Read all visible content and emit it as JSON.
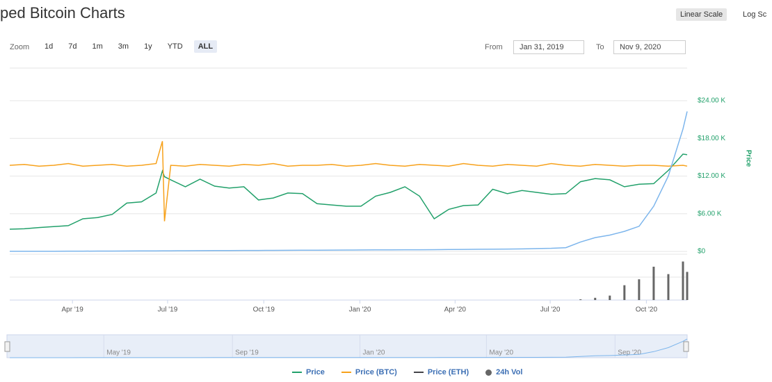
{
  "header": {
    "title": "ped Bitcoin Charts",
    "scale_buttons": [
      "Linear Scale",
      "Log Sc"
    ],
    "zoom_label": "Zoom",
    "zoom_buttons": [
      "1d",
      "7d",
      "1m",
      "3m",
      "1y",
      "YTD",
      "ALL"
    ],
    "from_label": "From",
    "from": "Jan 31, 2019",
    "to_label": "To",
    "to": "Nov 9, 2020"
  },
  "chart_data": {
    "type": "line",
    "y_label": "Price",
    "x": [
      "2019-01-31",
      "2019-02-14",
      "2019-02-28",
      "2019-03-14",
      "2019-03-28",
      "2019-04-11",
      "2019-04-25",
      "2019-05-09",
      "2019-05-23",
      "2019-06-06",
      "2019-06-20",
      "2019-06-26",
      "2019-06-28",
      "2019-07-04",
      "2019-07-18",
      "2019-08-01",
      "2019-08-15",
      "2019-08-29",
      "2019-09-12",
      "2019-09-26",
      "2019-10-10",
      "2019-10-24",
      "2019-11-07",
      "2019-11-21",
      "2019-12-05",
      "2019-12-19",
      "2020-01-02",
      "2020-01-16",
      "2020-01-30",
      "2020-02-13",
      "2020-02-27",
      "2020-03-12",
      "2020-03-26",
      "2020-04-09",
      "2020-04-23",
      "2020-05-07",
      "2020-05-21",
      "2020-06-04",
      "2020-06-18",
      "2020-07-02",
      "2020-07-16",
      "2020-07-30",
      "2020-08-13",
      "2020-08-27",
      "2020-09-10",
      "2020-09-24",
      "2020-10-08",
      "2020-10-22",
      "2020-11-05",
      "2020-11-09"
    ],
    "xlim": [
      "2019-01-31",
      "2020-11-09"
    ],
    "xticks": [
      {
        "value": "2019-04-01",
        "label": "Apr '19"
      },
      {
        "value": "2019-07-01",
        "label": "Jul '19"
      },
      {
        "value": "2019-10-01",
        "label": "Oct '19"
      },
      {
        "value": "2020-01-01",
        "label": "Jan '20"
      },
      {
        "value": "2020-04-01",
        "label": "Apr '20"
      },
      {
        "value": "2020-07-01",
        "label": "Jul '20"
      },
      {
        "value": "2020-10-01",
        "label": "Oct '20"
      }
    ],
    "ylim": [
      0,
      24000
    ],
    "yticks": [
      {
        "value": 0,
        "label": "$0"
      },
      {
        "value": 6000,
        "label": "$6.00 K"
      },
      {
        "value": 12000,
        "label": "$12.00 K"
      },
      {
        "value": 18000,
        "label": "$18.00 K"
      },
      {
        "value": 24000,
        "label": "$24.00 K"
      }
    ],
    "y2lim": [
      0,
      1.75
    ],
    "grid": true,
    "series": [
      {
        "name": "Price",
        "color": "#21a06a",
        "values": [
          3540,
          3600,
          3800,
          3950,
          4100,
          5200,
          5400,
          5900,
          7700,
          7900,
          9300,
          12800,
          11900,
          11400,
          10300,
          11500,
          10400,
          10100,
          10300,
          8200,
          8500,
          9300,
          9200,
          7600,
          7400,
          7200,
          7200,
          8800,
          9400,
          10300,
          8800,
          5200,
          6700,
          7300,
          7400,
          9900,
          9200,
          9700,
          9400,
          9100,
          9200,
          11100,
          11600,
          11400,
          10300,
          10700,
          10800,
          12900,
          15500,
          15400
        ]
      },
      {
        "name": "Price (BTC)",
        "color": "#f7a11a",
        "axis": "y2",
        "values": [
          1.0,
          1.01,
          0.99,
          1.0,
          1.02,
          0.99,
          1.0,
          1.01,
          0.99,
          1.0,
          1.02,
          1.28,
          0.35,
          1.0,
          0.99,
          1.01,
          1.0,
          0.99,
          1.01,
          1.0,
          1.02,
          0.99,
          1.0,
          1.0,
          1.01,
          0.99,
          1.0,
          1.02,
          1.0,
          0.99,
          1.01,
          1.0,
          0.99,
          1.02,
          1.0,
          0.99,
          1.01,
          1.0,
          0.99,
          1.02,
          1.0,
          0.99,
          1.01,
          1.0,
          0.99,
          1.0,
          1.0,
          0.99,
          1.0,
          0.99
        ]
      },
      {
        "name": "Price (ETH)",
        "color": "#434348"
      },
      {
        "color": "#7cb5ec",
        "values": [
          20,
          25,
          30,
          35,
          40,
          45,
          50,
          60,
          70,
          80,
          90,
          95,
          95,
          100,
          110,
          120,
          130,
          140,
          150,
          160,
          170,
          180,
          190,
          200,
          210,
          220,
          230,
          240,
          250,
          260,
          270,
          280,
          300,
          320,
          340,
          360,
          380,
          400,
          450,
          500,
          600,
          1500,
          2200,
          2600,
          3200,
          4000,
          7200,
          12000,
          19500,
          22300
        ]
      }
    ],
    "volume": {
      "name": "24h Vol",
      "color": "#666666",
      "ylim": [
        0,
        60
      ],
      "values": [
        0,
        0,
        0,
        0,
        0,
        0,
        0,
        0,
        0,
        0,
        0,
        0,
        0,
        0,
        0,
        0,
        0,
        0,
        0,
        0,
        0,
        0,
        0,
        0,
        0,
        0,
        0,
        0,
        0,
        0,
        0,
        0,
        0,
        0,
        0,
        0,
        0,
        0,
        0,
        0,
        0,
        1,
        3,
        6,
        20,
        28,
        45,
        35,
        52,
        38
      ]
    },
    "navigator": {
      "xticks": [
        {
          "value": "2019-05-01",
          "label": "May '19"
        },
        {
          "value": "2019-09-01",
          "label": "Sep '19"
        },
        {
          "value": "2020-01-01",
          "label": "Jan '20"
        },
        {
          "value": "2020-05-01",
          "label": "May '20"
        },
        {
          "value": "2020-09-01",
          "label": "Sep '20"
        }
      ]
    }
  }
}
